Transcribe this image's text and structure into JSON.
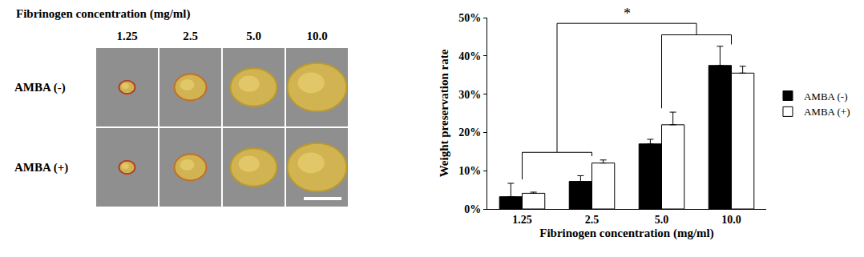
{
  "figure_panel": {
    "title": "Fibrinogen concentration (mg/ml)",
    "columns": [
      "1.25",
      "2.5",
      "5.0",
      "10.0"
    ],
    "rows": [
      "AMBA (-)",
      "AMBA (+)"
    ]
  },
  "chart_data": {
    "type": "bar",
    "categories": [
      "1.25",
      "2.5",
      "5.0",
      "10.0"
    ],
    "x_label": "Fibrinogen concentration (mg/ml)",
    "y_label": "Weight preservation rate",
    "series": [
      {
        "name": "AMBA (-)",
        "color": "#000000",
        "values": [
          3.2,
          7.2,
          17.0,
          37.5
        ],
        "errors": [
          3.5,
          1.5,
          1.2,
          5.0
        ]
      },
      {
        "name": "AMBA (+)",
        "color": "#ffffff",
        "values": [
          4.1,
          12.0,
          22.0,
          35.5
        ],
        "errors": [
          0.3,
          0.8,
          3.3,
          1.8
        ]
      }
    ],
    "ylim": [
      0,
      50
    ],
    "yticks": [
      {
        "value": 0,
        "label": "0%"
      },
      {
        "value": 10,
        "label": "10%"
      },
      {
        "value": 20,
        "label": "20%"
      },
      {
        "value": 30,
        "label": "30%"
      },
      {
        "value": 40,
        "label": "40%"
      },
      {
        "value": 50,
        "label": "50%"
      }
    ],
    "grid": false,
    "legend": "right",
    "annotations": [
      {
        "text": "*"
      }
    ]
  }
}
